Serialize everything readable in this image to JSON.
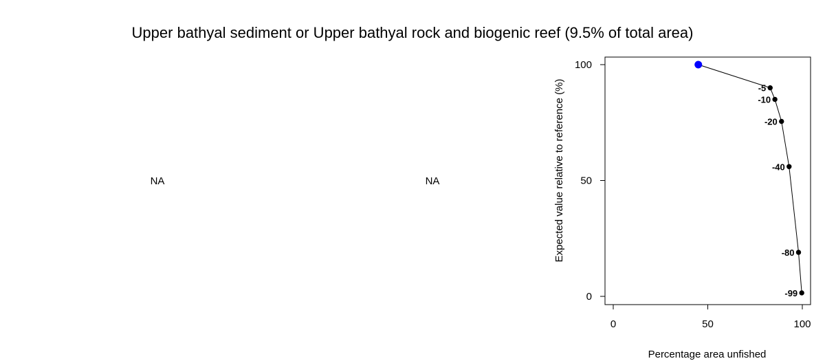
{
  "title": "Upper bathyal sediment or Upper bathyal rock and biogenic reef (9.5% of total area)",
  "panels": [
    {
      "placeholder": "NA"
    },
    {
      "placeholder": "NA"
    }
  ],
  "chart_data": {
    "type": "line",
    "title": "",
    "xlabel": "Percentage area unfished",
    "ylabel": "Expected value relative to reference (%)",
    "xlim": [
      0,
      100
    ],
    "ylim": [
      0,
      100
    ],
    "xticks": [
      0,
      50,
      100
    ],
    "yticks": [
      0,
      50,
      100
    ],
    "grid": false,
    "legend": "none",
    "series": [
      {
        "color": "#000000",
        "points": [
          {
            "x": 45,
            "y": 100,
            "label": "",
            "color": "#0000ff"
          },
          {
            "x": 83,
            "y": 90,
            "label": "-5"
          },
          {
            "x": 85.5,
            "y": 85,
            "label": "-10"
          },
          {
            "x": 89,
            "y": 75.5,
            "label": "-20"
          },
          {
            "x": 93,
            "y": 56,
            "label": "-40"
          },
          {
            "x": 98,
            "y": 19,
            "label": "-80"
          },
          {
            "x": 99.7,
            "y": 1.5,
            "label": "-99"
          }
        ]
      }
    ]
  }
}
